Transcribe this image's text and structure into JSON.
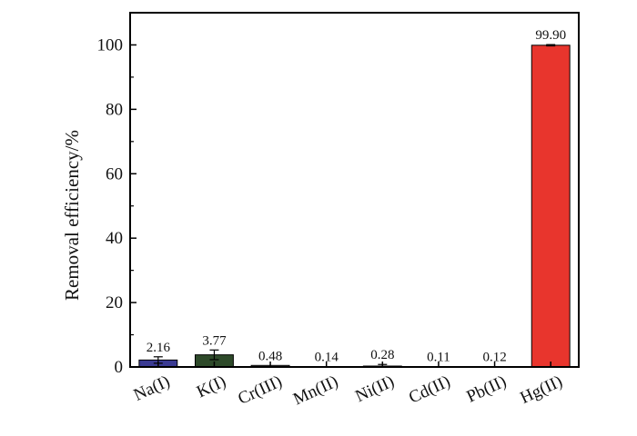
{
  "chart_data": {
    "type": "bar",
    "title": "",
    "xlabel": "",
    "ylabel": "Removal efficiency/%",
    "ylim": [
      0,
      110
    ],
    "yticks": [
      0,
      20,
      40,
      60,
      80,
      100
    ],
    "grid": false,
    "legend": "none",
    "categories": [
      "Na(I)",
      "K(I)",
      "Cr(III)",
      "Mn(II)",
      "Ni(II)",
      "Cd(II)",
      "Pb(II)",
      "Hg(II)"
    ],
    "values": [
      2.16,
      3.77,
      0.48,
      0.14,
      0.28,
      0.11,
      0.12,
      99.9
    ],
    "value_labels": [
      "2.16",
      "3.77",
      "0.48",
      "0.14",
      "0.28",
      "0.11",
      "0.12",
      "99.90"
    ],
    "error": [
      1.0,
      1.5,
      0,
      0,
      0.5,
      0,
      0,
      0.2
    ],
    "colors": [
      "#3b3b93",
      "#2e4a2a",
      "#888888",
      "#888888",
      "#888888",
      "#888888",
      "#888888",
      "#e8352d"
    ]
  }
}
